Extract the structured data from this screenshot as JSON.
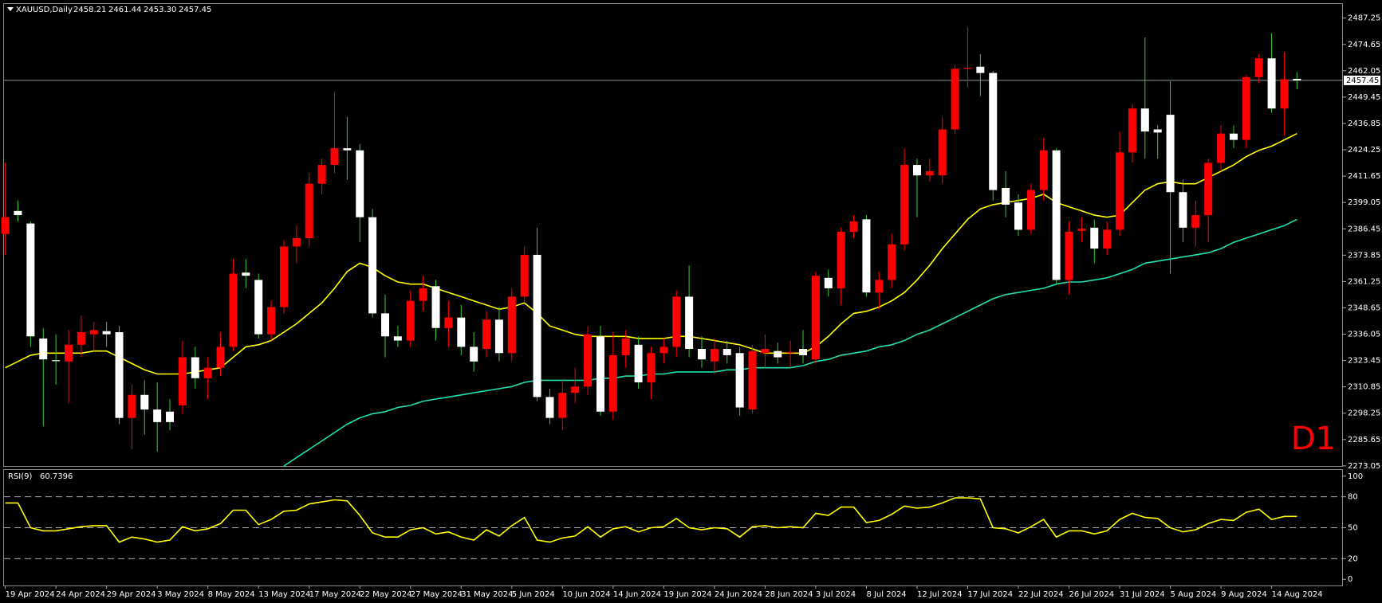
{
  "chart_data": {
    "type": "candlestick",
    "symbol": "XAUUSD,Daily",
    "header_ohlc_labels": [
      "2458.21",
      "2461.44",
      "2453.30",
      "2457.45"
    ],
    "timeframe": "D1",
    "categories": [
      "19 Apr 2024",
      null,
      null,
      null,
      "24 Apr 2024",
      null,
      null,
      null,
      "29 Apr 2024",
      null,
      null,
      null,
      "3 May 2024",
      null,
      null,
      null,
      "8 May 2024",
      null,
      null,
      null,
      "13 May 2024",
      null,
      null,
      null,
      "17 May 2024",
      null,
      null,
      null,
      "22 May 2024",
      null,
      null,
      null,
      "27 May 2024",
      null,
      null,
      null,
      "31 May 2024",
      null,
      null,
      null,
      "5 Jun 2024",
      null,
      null,
      null,
      "10 Jun 2024",
      null,
      null,
      null,
      "14 Jun 2024",
      null,
      null,
      null,
      "19 Jun 2024",
      null,
      null,
      null,
      "24 Jun 2024",
      null,
      null,
      null,
      "28 Jun 2024",
      null,
      null,
      null,
      "3 Jul 2024",
      null,
      null,
      null,
      "8 Jul 2024",
      null,
      null,
      null,
      "12 Jul 2024",
      null,
      null,
      null,
      "17 Jul 2024",
      null,
      null,
      null,
      "22 Jul 2024",
      null,
      null,
      null,
      "26 Jul 2024",
      null,
      null,
      null,
      "31 Jul 2024",
      null,
      null,
      null,
      "5 Aug 2024",
      null,
      null,
      null,
      "9 Aug 2024",
      null,
      null,
      null,
      "14 Aug 2024",
      null,
      null
    ],
    "open": [
      2384,
      2395,
      2389,
      2334,
      2323.6,
      2323,
      2331,
      2336,
      2337.5,
      2337,
      2296,
      2307,
      2300,
      2299,
      2302,
      2325,
      2315,
      2320,
      2330,
      2365.5,
      2362,
      2336,
      2349,
      2378,
      2382,
      2408,
      2417,
      2425,
      2424,
      2392,
      2346,
      2335,
      2333,
      2352,
      2359,
      2339,
      2344,
      2330,
      2329,
      2343,
      2327,
      2354,
      2374,
      2306,
      2296,
      2308,
      2311,
      2335,
      2299,
      2326,
      2331,
      2313,
      2327,
      2330,
      2354,
      2329,
      2323,
      2329,
      2327,
      2300,
      2327,
      2328,
      2327,
      2329,
      2324,
      2363,
      2358,
      2385,
      2391,
      2356,
      2362,
      2379,
      2417,
      2412,
      2412,
      2434,
      2463,
      2464,
      2461,
      2406,
      2399,
      2386,
      2405,
      2424,
      2362,
      2385.5,
      2387,
      2377,
      2386,
      2423,
      2444,
      2434,
      2441,
      2404,
      2387,
      2393,
      2418,
      2432,
      2429,
      2459,
      2468,
      2444,
      2458.21
    ],
    "high": [
      2418,
      2400,
      2390,
      2339,
      2336,
      2338,
      2345,
      2342,
      2342,
      2340,
      2312,
      2314,
      2313,
      2305,
      2333,
      2330,
      2325,
      2337,
      2372,
      2372,
      2365,
      2352,
      2381,
      2388,
      2413,
      2420,
      2452,
      2440,
      2427,
      2396,
      2355,
      2340,
      2357,
      2364,
      2362,
      2352,
      2350,
      2337,
      2347,
      2349,
      2358,
      2378,
      2387,
      2310,
      2314,
      2320,
      2340,
      2340,
      2337,
      2338,
      2335,
      2330,
      2334,
      2357,
      2369,
      2335,
      2334,
      2333,
      2330,
      2331,
      2336,
      2332,
      2333,
      2338,
      2366,
      2367,
      2387,
      2393,
      2393,
      2366,
      2384,
      2425,
      2420,
      2420,
      2440,
      2465,
      2483,
      2470,
      2462,
      2414,
      2403,
      2408,
      2430,
      2425,
      2390,
      2392,
      2391,
      2390,
      2433,
      2446,
      2478,
      2436,
      2457,
      2410,
      2400,
      2420,
      2436,
      2436,
      2460,
      2470,
      2480,
      2471,
      2461.44
    ],
    "low": [
      2374,
      2390,
      2330,
      2292,
      2312,
      2303,
      2325,
      2328,
      2330,
      2293,
      2281,
      2288,
      2280,
      2290,
      2298,
      2310,
      2305,
      2316,
      2328,
      2358,
      2334,
      2333,
      2346,
      2370,
      2378,
      2403,
      2413,
      2410,
      2380,
      2344,
      2325,
      2330,
      2330,
      2347,
      2333,
      2330,
      2326,
      2318,
      2325,
      2323,
      2323,
      2351,
      2304,
      2293,
      2290,
      2303,
      2307,
      2297,
      2295,
      2320,
      2310,
      2305,
      2322,
      2325,
      2325,
      2320,
      2317,
      2322,
      2297,
      2298,
      2320,
      2322,
      2320,
      2322,
      2322,
      2354,
      2350,
      2382,
      2354,
      2348,
      2358,
      2376,
      2392,
      2409,
      2408,
      2432,
      2454,
      2450,
      2400,
      2392,
      2383,
      2384,
      2400,
      2360,
      2355,
      2380,
      2370,
      2374,
      2383,
      2418,
      2420,
      2420,
      2365,
      2380,
      2378,
      2380,
      2414,
      2425,
      2425,
      2456,
      2442,
      2431,
      2453.3
    ],
    "close": [
      2392,
      2393,
      2335,
      2324,
      2323.4,
      2331,
      2337,
      2338,
      2336,
      2296,
      2307,
      2300,
      2294,
      2294,
      2325,
      2315,
      2320,
      2330,
      2365,
      2364,
      2336,
      2349,
      2378,
      2382,
      2408,
      2417,
      2425,
      2424,
      2392,
      2346,
      2335,
      2333,
      2352,
      2358,
      2339,
      2344,
      2330,
      2323,
      2343,
      2327,
      2354,
      2374,
      2306,
      2296,
      2308,
      2311,
      2336,
      2299,
      2326,
      2334,
      2313,
      2327,
      2330,
      2354,
      2329,
      2324,
      2329,
      2326,
      2301,
      2328,
      2329,
      2325,
      2327.5,
      2326,
      2364,
      2358,
      2385,
      2390,
      2356,
      2362,
      2379,
      2417,
      2412,
      2414,
      2434,
      2463,
      2463.5,
      2461,
      2405,
      2398,
      2386,
      2405,
      2424,
      2362,
      2385,
      2386.5,
      2377,
      2386,
      2423,
      2444,
      2433,
      2432.5,
      2404,
      2387,
      2393,
      2418,
      2432,
      2429,
      2459,
      2468,
      2444,
      2458,
      2457.45
    ],
    "up_color": "#ff0000",
    "down_color": "#ffffff",
    "up_wick_color": "#ff0000",
    "down_wick_color": "#33cc33",
    "moving_averages": [
      {
        "color": "#ffff00",
        "values": [
          2320,
          2323,
          2326,
          2327,
          2327,
          2327,
          2327,
          2328,
          2328,
          2325,
          2322,
          2319,
          2317,
          2317,
          2317,
          2318,
          2319,
          2320,
          2325,
          2330,
          2331,
          2333,
          2337,
          2341,
          2346,
          2351,
          2358,
          2366,
          2370,
          2368,
          2364,
          2361,
          2360,
          2360,
          2358,
          2356,
          2354,
          2352,
          2350,
          2348,
          2349,
          2351,
          2346,
          2340,
          2338,
          2336,
          2335,
          2335,
          2335,
          2335,
          2334,
          2334,
          2334,
          2335,
          2335,
          2334,
          2333,
          2332,
          2331,
          2329,
          2327,
          2327,
          2327,
          2327,
          2330,
          2335,
          2341,
          2346,
          2347,
          2349,
          2352,
          2356,
          2362,
          2369,
          2377,
          2384,
          2391,
          2396,
          2398,
          2399,
          2400,
          2401,
          2403,
          2399,
          2397,
          2395,
          2393,
          2392,
          2393,
          2399,
          2405,
          2408,
          2409,
          2408,
          2408,
          2411,
          2414,
          2417,
          2421,
          2424,
          2426,
          2429,
          2432
        ]
      },
      {
        "color": "#20e0b0",
        "values": [
          null,
          null,
          null,
          null,
          null,
          null,
          null,
          null,
          null,
          null,
          null,
          null,
          null,
          null,
          null,
          null,
          null,
          null,
          null,
          null,
          null,
          null,
          2273,
          2277,
          2281,
          2285,
          2289,
          2293,
          2296,
          2298,
          2299,
          2301,
          2302,
          2304,
          2305,
          2306,
          2307,
          2308,
          2309,
          2310,
          2311,
          2313,
          2314,
          2314,
          2314,
          2314,
          2314,
          2315,
          2315,
          2316,
          2316,
          2317,
          2317,
          2318,
          2318,
          2318,
          2318,
          2319,
          2319,
          2320,
          2320,
          2320,
          2320,
          2321,
          2323,
          2324,
          2326,
          2327,
          2328,
          2330,
          2331,
          2333,
          2336,
          2338,
          2341,
          2344,
          2347,
          2350,
          2353,
          2355,
          2356,
          2357,
          2358,
          2360,
          2361,
          2361,
          2362,
          2363,
          2365,
          2367,
          2370,
          2371,
          2372,
          2373,
          2374,
          2375,
          2377,
          2380,
          2382,
          2384,
          2386,
          2388,
          2391
        ]
      }
    ],
    "ylim": [
      2273,
      2494
    ],
    "yticks": [
      2487.25,
      2474.65,
      2462.05,
      2449.45,
      2436.85,
      2424.25,
      2411.65,
      2399.05,
      2386.45,
      2373.85,
      2361.25,
      2348.65,
      2336.05,
      2323.45,
      2310.85,
      2298.25,
      2285.65,
      2273.05
    ],
    "indicator": {
      "type": "line",
      "label": "RSI(9)",
      "value": 60.7396,
      "color": "#ffff00",
      "values": [
        74,
        74,
        50,
        47,
        47,
        49,
        51,
        52,
        52,
        36,
        41,
        39,
        36,
        38,
        51,
        47,
        49,
        54,
        67,
        67,
        53,
        58,
        66,
        67,
        73,
        75,
        77,
        76,
        62,
        45,
        41,
        41,
        48,
        50,
        44,
        46,
        41,
        38,
        48,
        42,
        52,
        60,
        38,
        36,
        40,
        42,
        51,
        41,
        49,
        51,
        46,
        50,
        51,
        59,
        50,
        48,
        50,
        49,
        41,
        51,
        52,
        50,
        51,
        50,
        64,
        62,
        70,
        70,
        55,
        57,
        63,
        71,
        69,
        70,
        74,
        79,
        79,
        78,
        50,
        49,
        45,
        51,
        58,
        41,
        47,
        47,
        44,
        47,
        58,
        64,
        60,
        59,
        50,
        46,
        48,
        54,
        58,
        57,
        65,
        68,
        58,
        61,
        61
      ],
      "ylim": [
        -6,
        106
      ],
      "yticks": [
        100,
        80,
        50,
        20,
        0
      ],
      "levels": [
        80,
        50,
        20
      ]
    }
  }
}
